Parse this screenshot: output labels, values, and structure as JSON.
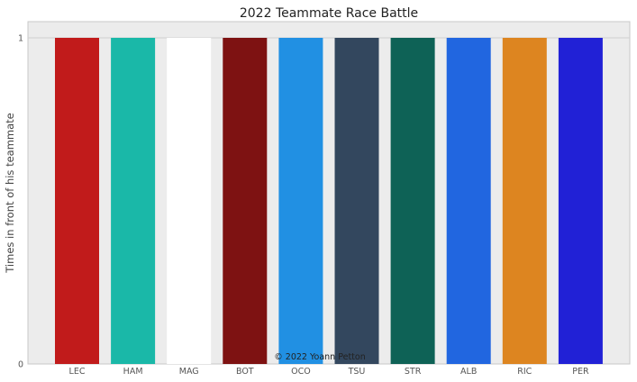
{
  "chart_data": {
    "type": "bar",
    "title": "2022 Teammate Race Battle",
    "xlabel": "",
    "ylabel": "Times in front of his teammate",
    "categories": [
      "LEC",
      "HAM",
      "MAG",
      "BOT",
      "OCO",
      "TSU",
      "STR",
      "ALB",
      "RIC",
      "PER"
    ],
    "values": [
      1,
      1,
      1,
      1,
      1,
      1,
      1,
      1,
      1,
      1
    ],
    "colors": [
      "#c11b1b",
      "#1ab8a8",
      "#ffffff",
      "#7e1212",
      "#2190e3",
      "#33475e",
      "#0e6256",
      "#2166e0",
      "#dd8520",
      "#2121d6"
    ],
    "ylim": [
      0,
      1
    ],
    "yticks": [
      0,
      1
    ],
    "grid": true,
    "background": "#ececec",
    "annotation": "© 2022 Yoann Petton"
  }
}
